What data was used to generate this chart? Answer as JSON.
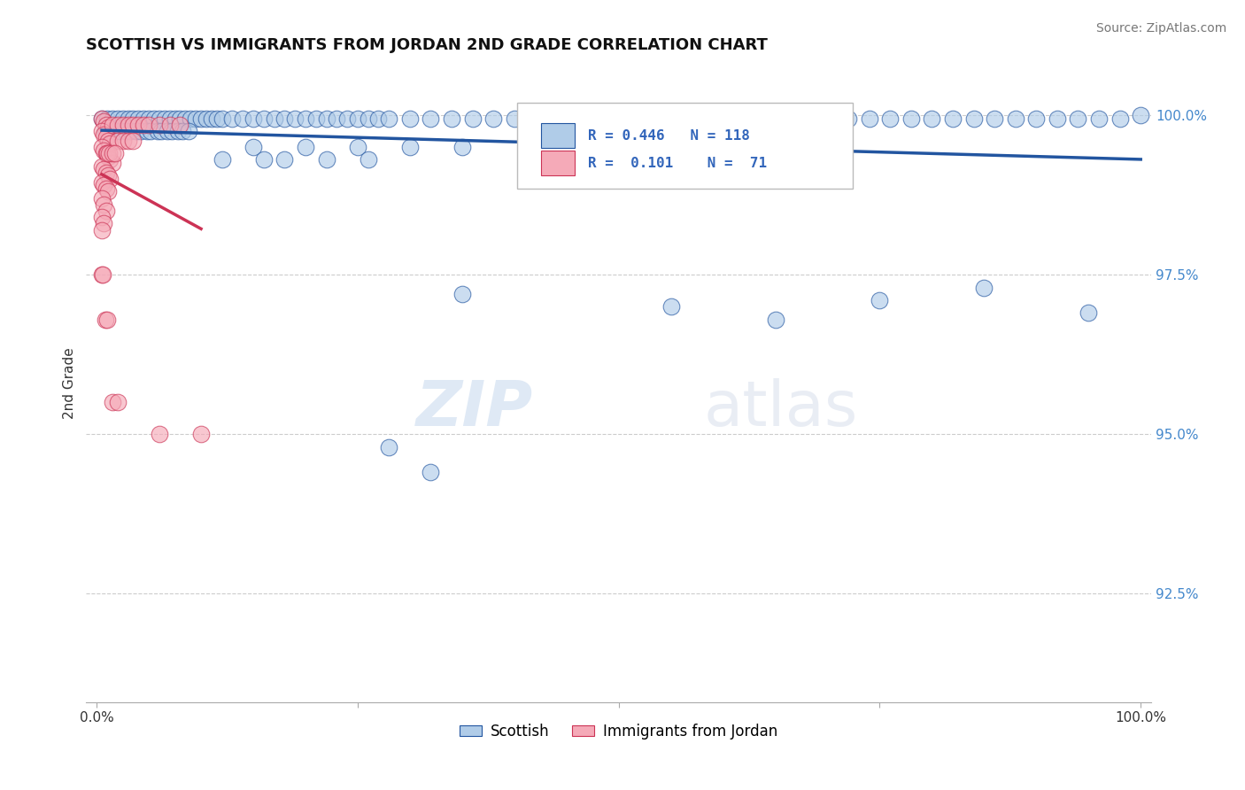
{
  "title": "SCOTTISH VS IMMIGRANTS FROM JORDAN 2ND GRADE CORRELATION CHART",
  "source": "Source: ZipAtlas.com",
  "ylabel": "2nd Grade",
  "xlim": [
    -0.01,
    1.01
  ],
  "ylim": [
    0.908,
    1.008
  ],
  "yticks_right": [
    0.925,
    0.95,
    0.975,
    1.0
  ],
  "ytick_labels_right": [
    "92.5%",
    "95.0%",
    "97.5%",
    "100.0%"
  ],
  "blue_color": "#b0cce8",
  "pink_color": "#f5aab8",
  "blue_line_color": "#2255a0",
  "pink_line_color": "#cc3355",
  "legend_R_blue": "0.446",
  "legend_N_blue": "118",
  "legend_R_pink": "0.101",
  "legend_N_pink": "71",
  "legend_label_blue": "Scottish",
  "legend_label_pink": "Immigrants from Jordan",
  "watermark1": "ZIP",
  "watermark2": "atlas",
  "blue_scatter_x": [
    0.005,
    0.01,
    0.015,
    0.02,
    0.025,
    0.03,
    0.035,
    0.04,
    0.045,
    0.05,
    0.055,
    0.06,
    0.065,
    0.07,
    0.075,
    0.08,
    0.085,
    0.09,
    0.095,
    0.1,
    0.105,
    0.11,
    0.115,
    0.12,
    0.13,
    0.14,
    0.15,
    0.16,
    0.17,
    0.18,
    0.19,
    0.2,
    0.21,
    0.22,
    0.23,
    0.24,
    0.25,
    0.26,
    0.27,
    0.28,
    0.3,
    0.32,
    0.34,
    0.36,
    0.38,
    0.4,
    0.42,
    0.44,
    0.46,
    0.48,
    0.5,
    0.52,
    0.54,
    0.56,
    0.58,
    0.6,
    0.62,
    0.64,
    0.66,
    0.68,
    0.7,
    0.72,
    0.74,
    0.76,
    0.78,
    0.8,
    0.82,
    0.84,
    0.86,
    0.88,
    0.9,
    0.92,
    0.94,
    0.96,
    0.98,
    1.0,
    0.008,
    0.012,
    0.018,
    0.022,
    0.028,
    0.032,
    0.038,
    0.042,
    0.048,
    0.052,
    0.058,
    0.062,
    0.068,
    0.072,
    0.078,
    0.082,
    0.088,
    0.15,
    0.2,
    0.25,
    0.3,
    0.35,
    0.12,
    0.16,
    0.18,
    0.22,
    0.26,
    0.35,
    0.55,
    0.65,
    0.75,
    0.85,
    0.95,
    0.28,
    0.32
  ],
  "blue_scatter_y": [
    0.9995,
    0.9995,
    0.9995,
    0.9995,
    0.9995,
    0.9995,
    0.9995,
    0.9995,
    0.9995,
    0.9995,
    0.9995,
    0.9995,
    0.9995,
    0.9995,
    0.9995,
    0.9995,
    0.9995,
    0.9995,
    0.9995,
    0.9995,
    0.9995,
    0.9995,
    0.9995,
    0.9995,
    0.9995,
    0.9995,
    0.9995,
    0.9995,
    0.9995,
    0.9995,
    0.9995,
    0.9995,
    0.9995,
    0.9995,
    0.9995,
    0.9995,
    0.9995,
    0.9995,
    0.9995,
    0.9995,
    0.9995,
    0.9995,
    0.9995,
    0.9995,
    0.9995,
    0.9995,
    0.9995,
    0.9995,
    0.9995,
    0.9995,
    0.9995,
    0.9995,
    0.9995,
    0.9995,
    0.9995,
    0.9995,
    0.9995,
    0.9995,
    0.9995,
    0.9995,
    0.9995,
    0.9995,
    0.9995,
    0.9995,
    0.9995,
    0.9995,
    0.9995,
    0.9995,
    0.9995,
    0.9995,
    0.9995,
    0.9995,
    0.9995,
    0.9995,
    0.9995,
    1.0,
    0.9975,
    0.9975,
    0.9975,
    0.9975,
    0.9975,
    0.9975,
    0.9975,
    0.9975,
    0.9975,
    0.9975,
    0.9975,
    0.9975,
    0.9975,
    0.9975,
    0.9975,
    0.9975,
    0.9975,
    0.995,
    0.995,
    0.995,
    0.995,
    0.995,
    0.993,
    0.993,
    0.993,
    0.993,
    0.993,
    0.972,
    0.97,
    0.968,
    0.971,
    0.973,
    0.969,
    0.948,
    0.944
  ],
  "pink_scatter_x": [
    0.005,
    0.007,
    0.009,
    0.011,
    0.005,
    0.007,
    0.009,
    0.011,
    0.013,
    0.005,
    0.007,
    0.009,
    0.011,
    0.013,
    0.015,
    0.005,
    0.007,
    0.009,
    0.011,
    0.013,
    0.005,
    0.007,
    0.009,
    0.011,
    0.005,
    0.007,
    0.009,
    0.005,
    0.007,
    0.005,
    0.015,
    0.02,
    0.025,
    0.03,
    0.035,
    0.04,
    0.045,
    0.05,
    0.06,
    0.07,
    0.08,
    0.02,
    0.025,
    0.03,
    0.035,
    0.01,
    0.012,
    0.015,
    0.018,
    0.005,
    0.006,
    0.06,
    0.1,
    0.008,
    0.01,
    0.015,
    0.02
  ],
  "pink_scatter_y": [
    0.9995,
    0.999,
    0.9985,
    0.998,
    0.9975,
    0.997,
    0.9965,
    0.996,
    0.9955,
    0.995,
    0.9945,
    0.994,
    0.9935,
    0.993,
    0.9925,
    0.992,
    0.9915,
    0.991,
    0.9905,
    0.99,
    0.9895,
    0.989,
    0.9885,
    0.988,
    0.987,
    0.986,
    0.985,
    0.984,
    0.983,
    0.982,
    0.9985,
    0.9985,
    0.9985,
    0.9985,
    0.9985,
    0.9985,
    0.9985,
    0.9985,
    0.9985,
    0.9985,
    0.9985,
    0.996,
    0.996,
    0.996,
    0.996,
    0.994,
    0.994,
    0.994,
    0.994,
    0.975,
    0.975,
    0.95,
    0.95,
    0.968,
    0.968,
    0.955,
    0.955
  ]
}
